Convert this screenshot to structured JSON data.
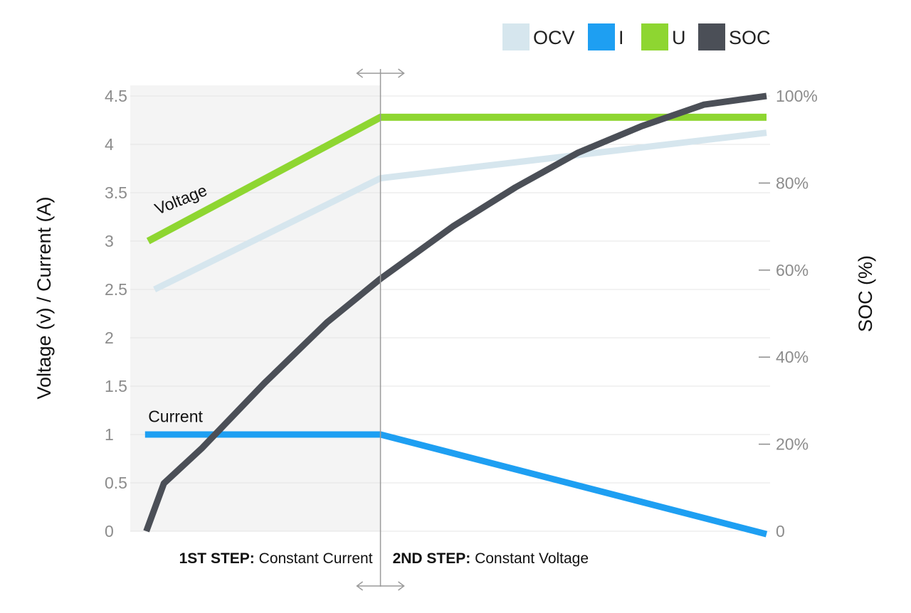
{
  "chart_data": {
    "type": "line",
    "title": "",
    "xlabel": "",
    "ylabel": "Voltage (v) / Current (A)",
    "y2label": "SOC (%)",
    "ylim": [
      0,
      4.5
    ],
    "y2lim": [
      0,
      100
    ],
    "yticks": [
      "0",
      "0.5",
      "1",
      "1.5",
      "2",
      "2.5",
      "3",
      "3.5",
      "4",
      "4.5"
    ],
    "y2ticks": [
      "0",
      "20%",
      "40%",
      "60%",
      "80%",
      "100%"
    ],
    "xlim": [
      0,
      1
    ],
    "grid": true,
    "legend_position": "top-right",
    "legend": [
      {
        "key": "OCV",
        "label": "OCV",
        "color": "#d6e6ee"
      },
      {
        "key": "I",
        "label": "I",
        "color": "#1e9ff2"
      },
      {
        "key": "U",
        "label": "U",
        "color": "#8ed631"
      },
      {
        "key": "SOC",
        "label": "SOC",
        "color": "#4b4f57"
      }
    ],
    "series": [
      {
        "key": "OCV",
        "axis": "left",
        "points": [
          [
            0.025,
            2.5
          ],
          [
            0.385,
            3.65
          ],
          [
            1.0,
            4.12
          ]
        ]
      },
      {
        "key": "U",
        "axis": "left",
        "points": [
          [
            0.015,
            3.0
          ],
          [
            0.385,
            4.28
          ],
          [
            1.0,
            4.28
          ]
        ]
      },
      {
        "key": "I",
        "axis": "left",
        "points": [
          [
            0.01,
            1.0
          ],
          [
            0.385,
            1.0
          ],
          [
            1.0,
            -0.03
          ]
        ]
      },
      {
        "key": "SOC",
        "axis": "right",
        "points": [
          [
            0.012,
            0
          ],
          [
            0.04,
            11
          ],
          [
            0.1,
            19
          ],
          [
            0.2,
            34
          ],
          [
            0.3,
            48
          ],
          [
            0.385,
            58
          ],
          [
            0.5,
            70
          ],
          [
            0.6,
            79
          ],
          [
            0.7,
            87
          ],
          [
            0.8,
            93
          ],
          [
            0.9,
            98
          ],
          [
            1.0,
            100
          ]
        ]
      }
    ],
    "annotations": [
      {
        "key": "voltage_label",
        "text": "Voltage",
        "x": 0.03,
        "y": 3.27,
        "rotate": -22
      },
      {
        "key": "current_label",
        "text": "Current",
        "x": 0.015,
        "y": 1.13,
        "rotate": 0
      }
    ],
    "phase_divider_x": 0.385,
    "steps": [
      {
        "bold": "1ST STEP:",
        "text": " Constant Current"
      },
      {
        "bold": "2ND STEP:",
        "text": " Constant Voltage"
      }
    ],
    "colors": {
      "shade": "#f4f4f4",
      "grid": "#e4e4e4",
      "divider": "#9a9a9a"
    }
  }
}
